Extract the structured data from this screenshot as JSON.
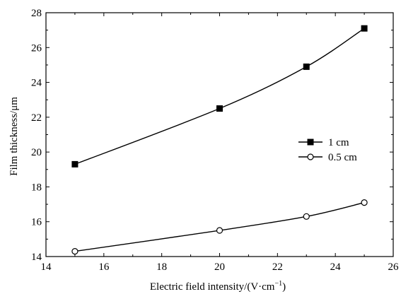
{
  "chart_data": {
    "type": "line",
    "title": "",
    "xlabel": "Electric field intensity/(V·cm",
    "xlabel_sup": "−1",
    "xlabel_end": ")",
    "ylabel": "Film thickness/μm",
    "xlim": [
      14,
      26
    ],
    "ylim": [
      14,
      28
    ],
    "xticks": [
      14,
      16,
      18,
      20,
      22,
      24,
      26
    ],
    "yticks": [
      14,
      16,
      18,
      20,
      22,
      24,
      26,
      28
    ],
    "x": [
      15,
      20,
      23,
      25
    ],
    "series": [
      {
        "name": "1 cm",
        "marker": "filled-square",
        "values": [
          19.3,
          22.5,
          24.9,
          27.1
        ]
      },
      {
        "name": "0.5 cm",
        "marker": "open-circle",
        "values": [
          14.3,
          15.5,
          16.3,
          17.1
        ]
      }
    ],
    "grid": false,
    "legend_position": "right"
  }
}
